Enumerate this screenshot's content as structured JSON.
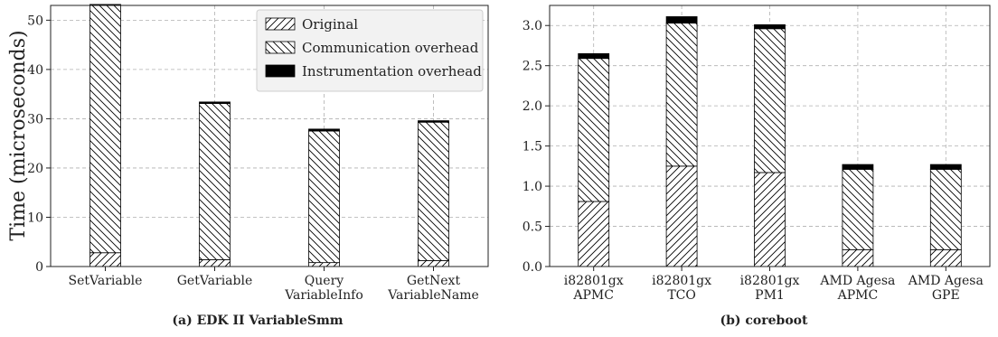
{
  "y_axis_label": "Time (microseconds)",
  "legend": {
    "items": [
      {
        "label": "Original",
        "pattern": "hatch-forward"
      },
      {
        "label": "Communication overhead",
        "pattern": "hatch-back"
      },
      {
        "label": "Instrumentation overhead",
        "pattern": "solid-black"
      }
    ],
    "position": "top-center-left-panel"
  },
  "chart_data": [
    {
      "type": "bar",
      "stacked": true,
      "caption": "(a) EDK II VariableSmm",
      "categories": [
        [
          "SetVariable"
        ],
        [
          "GetVariable"
        ],
        [
          "Query",
          "VariableInfo"
        ],
        [
          "GetNext",
          "VariableName"
        ]
      ],
      "series": [
        {
          "name": "Original",
          "values": [
            2.8,
            1.4,
            0.8,
            1.2
          ]
        },
        {
          "name": "Communication overhead",
          "values": [
            50.5,
            31.7,
            26.7,
            28.1
          ]
        },
        {
          "name": "Instrumentation overhead",
          "values": [
            0.4,
            0.3,
            0.4,
            0.3
          ]
        }
      ],
      "ylim": [
        0,
        53
      ],
      "yticks": [
        0,
        10,
        20,
        30,
        40,
        50
      ],
      "ytick_labels": [
        "0",
        "10",
        "20",
        "30",
        "40",
        "50"
      ],
      "grid": true,
      "colors": {
        "fill": "#ffffff",
        "stroke": "#000000",
        "grid": "#b0b0b0"
      }
    },
    {
      "type": "bar",
      "stacked": true,
      "caption": "(b) coreboot",
      "categories": [
        [
          "i82801gx",
          "APMC"
        ],
        [
          "i82801gx",
          "TCO"
        ],
        [
          "i82801gx",
          "PM1"
        ],
        [
          "AMD Agesa",
          "APMC"
        ],
        [
          "AMD Agesa",
          "GPE"
        ]
      ],
      "series": [
        {
          "name": "Original",
          "values": [
            0.81,
            1.25,
            1.17,
            0.21,
            0.21
          ]
        },
        {
          "name": "Communication overhead",
          "values": [
            1.78,
            1.78,
            1.79,
            1.0,
            1.0
          ]
        },
        {
          "name": "Instrumentation overhead",
          "values": [
            0.06,
            0.08,
            0.05,
            0.06,
            0.06
          ]
        }
      ],
      "ylim": [
        0,
        3.25
      ],
      "yticks": [
        0,
        0.5,
        1,
        1.5,
        2,
        2.5,
        3
      ],
      "ytick_labels": [
        "0.0",
        "0.5",
        "1.0",
        "1.5",
        "2.0",
        "2.5",
        "3.0"
      ],
      "grid": true,
      "colors": {
        "fill": "#ffffff",
        "stroke": "#000000",
        "grid": "#b0b0b0"
      }
    }
  ]
}
